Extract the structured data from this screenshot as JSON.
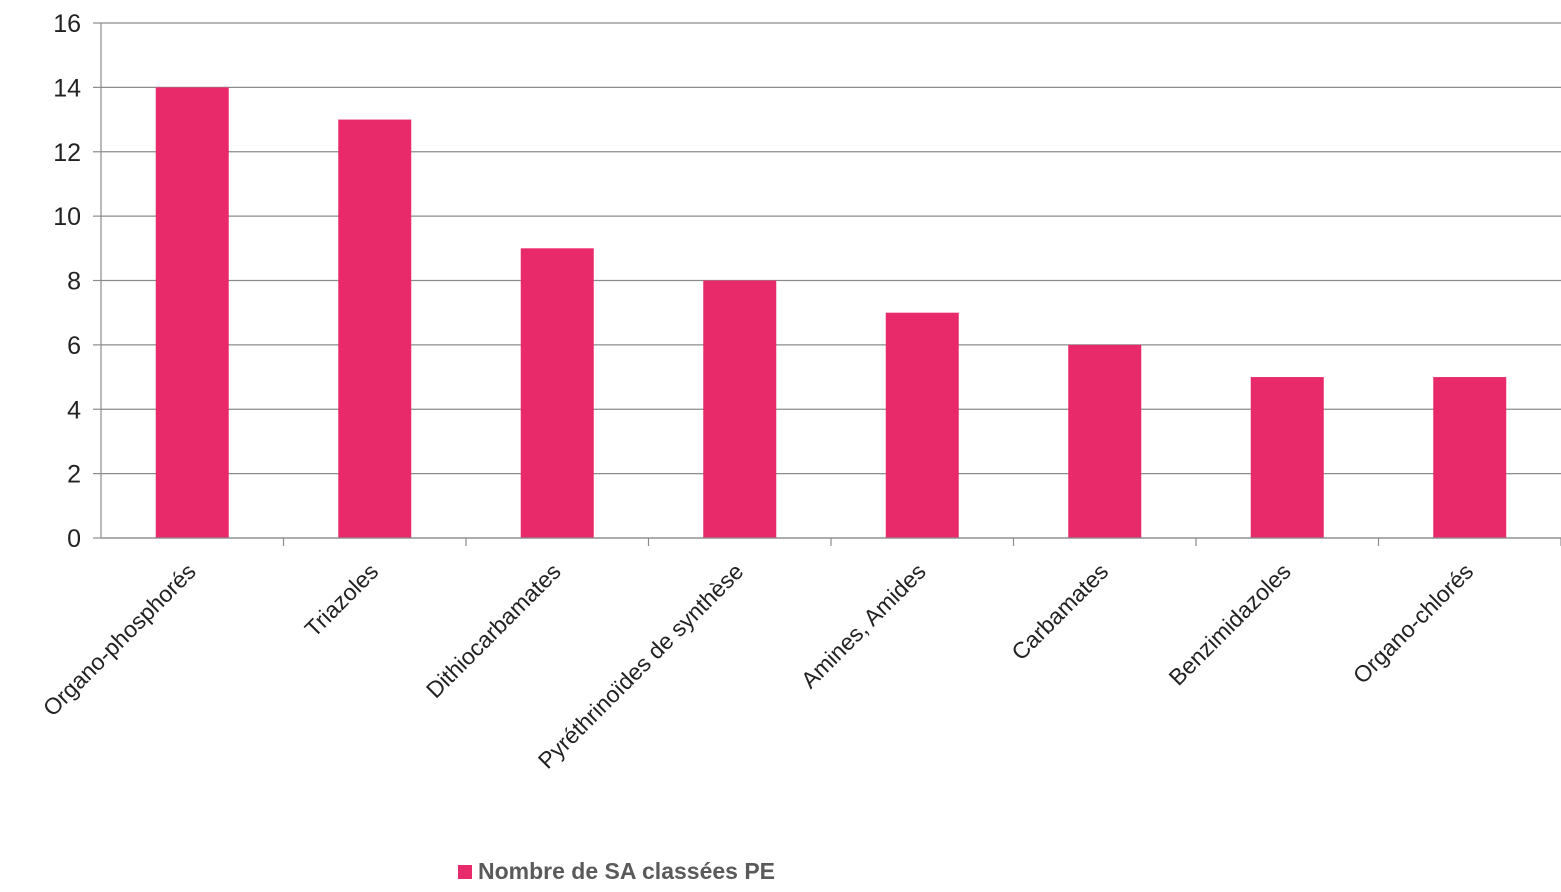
{
  "chart_data": {
    "type": "bar",
    "categories": [
      "Organo-phosphorés",
      "Triazoles",
      "Dithiocarbamates",
      "Pyréthrinoïdes de synthèse",
      "Amines, Amides",
      "Carbamates",
      "Benzimidazoles",
      "Organo-chlorés"
    ],
    "series": [
      {
        "name": "Nombre de SA classées PE",
        "values": [
          14,
          13,
          9,
          8,
          7,
          6,
          5,
          5
        ]
      }
    ],
    "ylim": [
      0,
      16
    ],
    "yticks": [
      0,
      2,
      4,
      6,
      8,
      10,
      12,
      14,
      16
    ],
    "grid": true,
    "legend_position": "bottom",
    "colors": {
      "bar": "#e8296a",
      "grid": "#8c8c8c"
    }
  }
}
